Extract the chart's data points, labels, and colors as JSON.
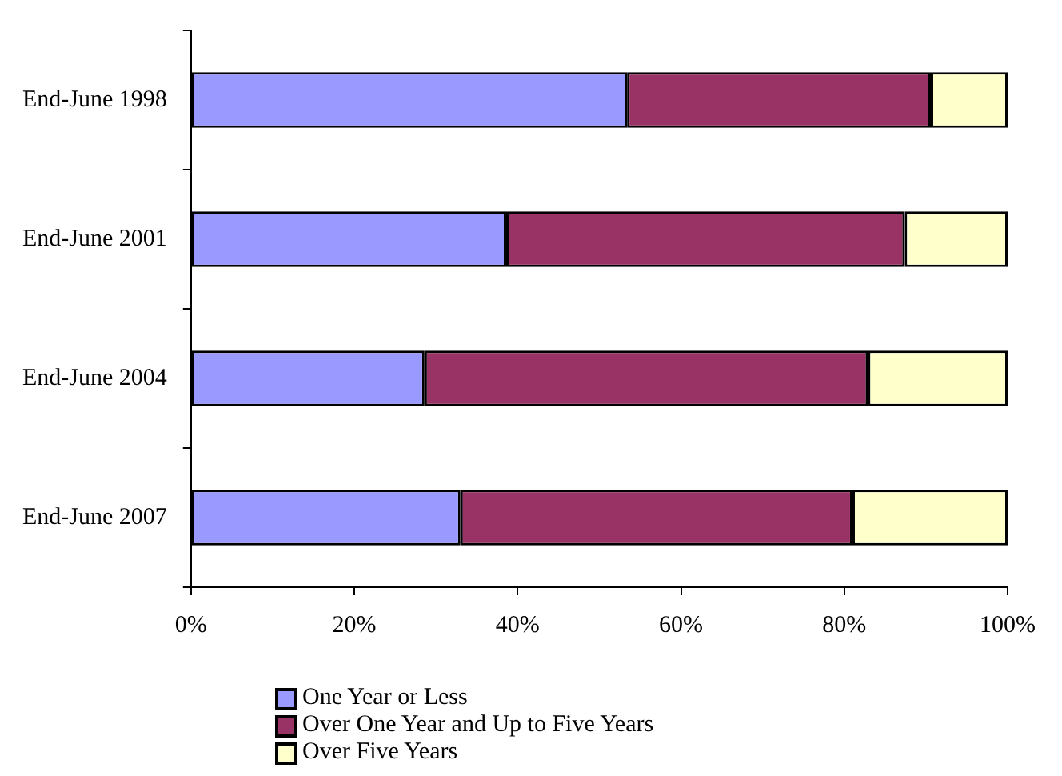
{
  "chart_data": {
    "type": "bar",
    "orientation": "horizontal",
    "stacked": true,
    "categories": [
      "End-June 1998",
      "End-June 2001",
      "End-June 2004",
      "End-June 2007"
    ],
    "series": [
      {
        "name": "One Year or Less",
        "color": "#9999ff",
        "values": [
          53.4,
          38.6,
          28.6,
          33.0
        ]
      },
      {
        "name": "Over One Year and Up to Five Years",
        "color": "#993366",
        "values": [
          37.2,
          48.8,
          54.3,
          48.0
        ]
      },
      {
        "name": "Over Five Years",
        "color": "#ffffcc",
        "values": [
          9.4,
          12.6,
          17.1,
          19.0
        ]
      }
    ],
    "xlim": [
      0,
      100
    ],
    "xticks": [
      {
        "value": 0,
        "label": "0%"
      },
      {
        "value": 20,
        "label": "20%"
      },
      {
        "value": 40,
        "label": "40%"
      },
      {
        "value": 60,
        "label": "60%"
      },
      {
        "value": 80,
        "label": "80%"
      },
      {
        "value": 100,
        "label": "100%"
      }
    ],
    "grid": false,
    "legend": "bottom"
  }
}
